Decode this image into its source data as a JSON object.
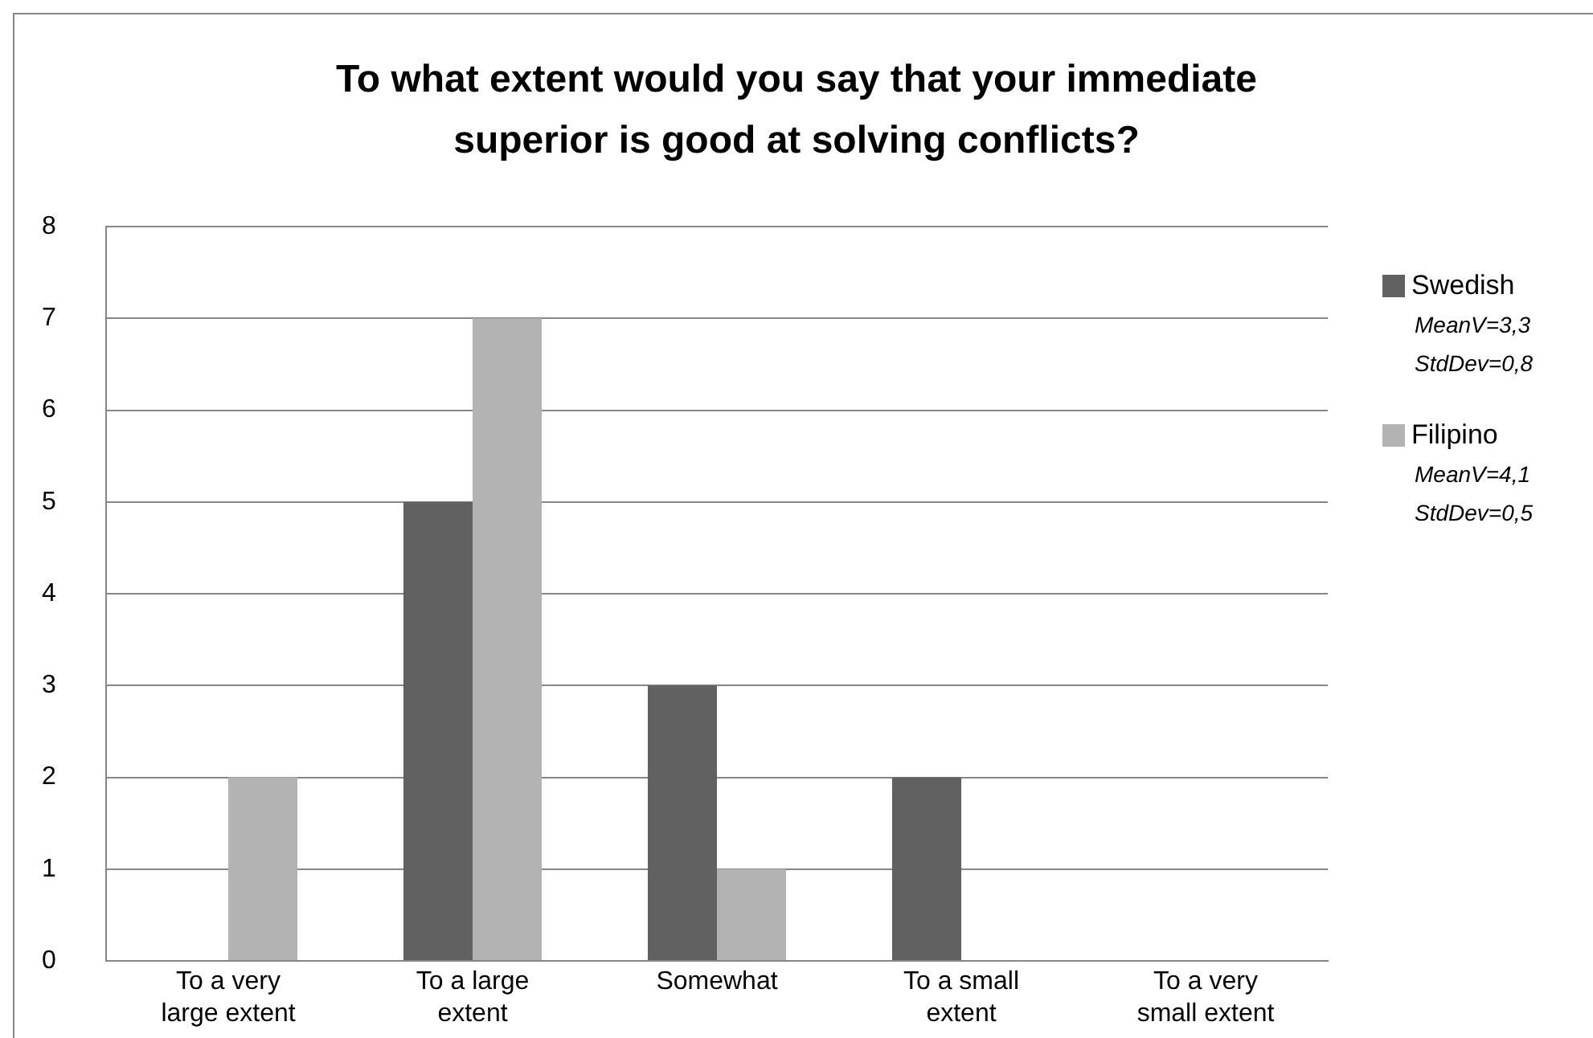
{
  "chart_data": {
    "type": "bar",
    "title": "To what extent would you say that your immediate superior is good at solving conflicts?",
    "categories": [
      "To a very large extent",
      "To a large extent",
      "Somewhat",
      "To a small extent",
      "To a very small extent"
    ],
    "series": [
      {
        "name": "Swedish",
        "color": "#616161",
        "values": [
          0,
          5,
          3,
          2,
          0
        ]
      },
      {
        "name": "Filipino",
        "color": "#b3b3b3",
        "values": [
          2,
          7,
          1,
          0,
          0
        ]
      }
    ],
    "annotations": [
      "MeanV=3,3 StdDev=0,8",
      "MeanV=4,1 StdDev=0,5"
    ],
    "ylim": [
      0,
      8
    ],
    "yticks": [
      0,
      1,
      2,
      3,
      4,
      5,
      6,
      7,
      8
    ],
    "grid": "y",
    "legend": "right"
  }
}
